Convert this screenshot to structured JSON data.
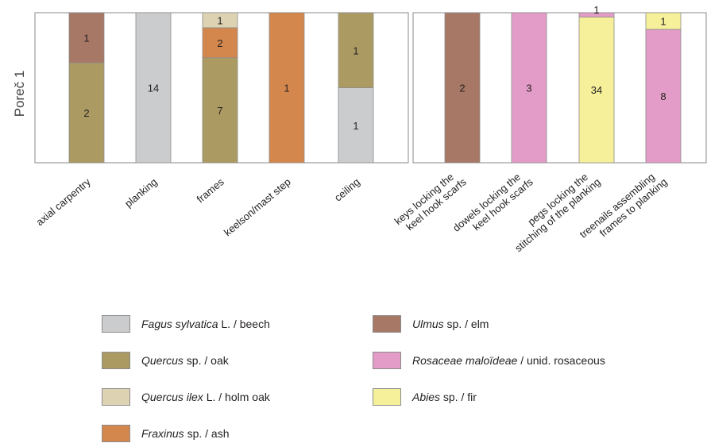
{
  "chart_data": {
    "type": "bar",
    "stacked": true,
    "normalized": true,
    "ylabel": "Poreč 1",
    "panels": [
      {
        "categories": [
          "axial carpentry",
          "planking",
          "frames",
          "keelson/mast step",
          "ceiling"
        ],
        "bars": [
          [
            {
              "taxon": "oak",
              "count": 2
            },
            {
              "taxon": "elm",
              "count": 1
            }
          ],
          [
            {
              "taxon": "beech",
              "count": 14
            }
          ],
          [
            {
              "taxon": "oak",
              "count": 7
            },
            {
              "taxon": "ash",
              "count": 2
            },
            {
              "taxon": "holm_oak",
              "count": 1
            }
          ],
          [
            {
              "taxon": "ash",
              "count": 1
            }
          ],
          [
            {
              "taxon": "beech",
              "count": 1
            },
            {
              "taxon": "oak",
              "count": 1
            }
          ]
        ]
      },
      {
        "categories": [
          "keys locking the\nkeel hook scarfs",
          "dowels locking the\nkeel hook scarfs",
          "pegs locking the\nstitching of the planking",
          "treenails assembling\nframes to planking"
        ],
        "bars": [
          [
            {
              "taxon": "elm",
              "count": 2
            }
          ],
          [
            {
              "taxon": "rosaceous",
              "count": 3
            }
          ],
          [
            {
              "taxon": "fir",
              "count": 34
            },
            {
              "taxon": "rosaceous",
              "count": 1
            }
          ],
          [
            {
              "taxon": "rosaceous",
              "count": 8
            },
            {
              "taxon": "fir",
              "count": 1
            }
          ]
        ]
      }
    ],
    "legend": [
      {
        "key": "beech",
        "color": "#cbcccd",
        "sci": "Fagus sylvatica",
        "rest": " L. / beech"
      },
      {
        "key": "oak",
        "color": "#ab9b62",
        "sci": "Quercus",
        "rest": " sp. / oak"
      },
      {
        "key": "holm_oak",
        "color": "#ddd3b3",
        "sci": "Quercus ilex",
        "rest": " L. / holm oak"
      },
      {
        "key": "ash",
        "color": "#d4874d",
        "sci": "Fraxinus",
        "rest": " sp. / ash"
      },
      {
        "key": "elm",
        "color": "#a87866",
        "sci": "Ulmus",
        "rest": " sp. / elm"
      },
      {
        "key": "rosaceous",
        "color": "#e39cc8",
        "sci": "Rosaceae maloïdeae",
        "rest": " / unid. rosaceous"
      },
      {
        "key": "fir",
        "color": "#f6f09a",
        "sci": "Abies",
        "rest": " sp. / fir"
      }
    ]
  }
}
